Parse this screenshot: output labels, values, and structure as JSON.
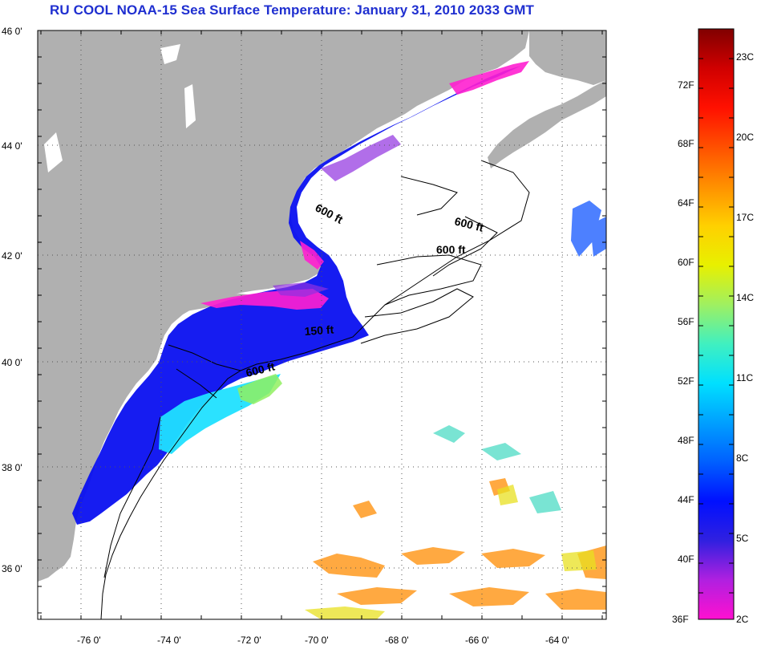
{
  "title": "RU COOL  NOAA-15  Sea Surface Temperature:  January 31, 2010 2033 GMT",
  "map": {
    "lat_labels": [
      "46 0'",
      "44 0'",
      "42 0'",
      "40 0'",
      "38 0'",
      "36 0'"
    ],
    "lon_labels": [
      "-76 0'",
      "-74 0'",
      "-72 0'",
      "-70 0'",
      "-68 0'",
      "-66 0'",
      "-64 0'"
    ],
    "contour_labels": [
      "600 ft",
      "600 ft",
      "600 ft",
      "150 ft",
      "600 ft"
    ],
    "colors": {
      "land": "#b0b0b0",
      "ocean": "#ffffff",
      "title": "#1f2fd0"
    }
  },
  "colorbar": {
    "fahrenheit_labels": [
      "72F",
      "68F",
      "64F",
      "60F",
      "56F",
      "52F",
      "48F",
      "44F",
      "40F",
      "36F"
    ],
    "celsius_labels": [
      "23C",
      "20C",
      "17C",
      "14C",
      "11C",
      "8C",
      "5C",
      "2C"
    ],
    "gradient_stops": [
      "#ff10d0",
      "#b020e0",
      "#3020e0",
      "#0010ff",
      "#0060ff",
      "#00a0ff",
      "#00e0ff",
      "#40f0c0",
      "#a0f060",
      "#e8f000",
      "#ffd000",
      "#ff9000",
      "#ff5000",
      "#ff1000",
      "#d00000",
      "#800000"
    ]
  }
}
